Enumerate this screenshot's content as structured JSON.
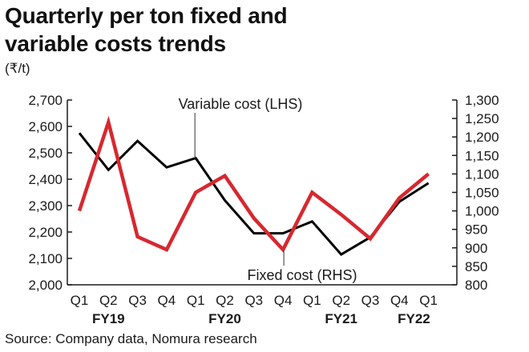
{
  "title_line1": "Quarterly per ton fixed and",
  "title_line2": "variable costs trends",
  "unit": "(₹/t)",
  "source": "Source: Company data, Nomura research",
  "chart_data": {
    "type": "line",
    "categories": [
      "Q1",
      "Q2",
      "Q3",
      "Q4",
      "Q1",
      "Q2",
      "Q3",
      "Q4",
      "Q1",
      "Q2",
      "Q3",
      "Q4",
      "Q1"
    ],
    "fiscal_years": [
      {
        "label": "FY19",
        "index": 1
      },
      {
        "label": "FY20",
        "index": 5
      },
      {
        "label": "FY21",
        "index": 9
      },
      {
        "label": "FY22",
        "index": 11.5
      }
    ],
    "y_left": {
      "min": 2000,
      "max": 2700,
      "ticks": [
        "2,000",
        "2,100",
        "2,200",
        "2,300",
        "2,400",
        "2,500",
        "2,600",
        "2,700"
      ]
    },
    "y_right": {
      "min": 800,
      "max": 1300,
      "ticks": [
        "800",
        "850",
        "900",
        "950",
        "1,000",
        "1,050",
        "1,100",
        "1,150",
        "1,200",
        "1,250",
        "1,300"
      ]
    },
    "series": [
      {
        "name": "Variable cost (LHS)",
        "axis": "left",
        "color": "#000000",
        "values": [
          2575,
          2435,
          2545,
          2445,
          2480,
          2320,
          2195,
          2195,
          2240,
          2115,
          2180,
          2315,
          2385
        ]
      },
      {
        "name": "Fixed cost (RHS)",
        "axis": "right",
        "color": "#d7282f",
        "values": [
          1000,
          1240,
          930,
          895,
          1050,
          1095,
          980,
          895,
          1050,
          990,
          925,
          1035,
          1100
        ]
      }
    ],
    "annotations": [
      {
        "text": "Variable cost (LHS)",
        "series": 0,
        "index": 4
      },
      {
        "text": "Fixed cost (RHS)",
        "series": 1,
        "index": 7
      }
    ]
  }
}
